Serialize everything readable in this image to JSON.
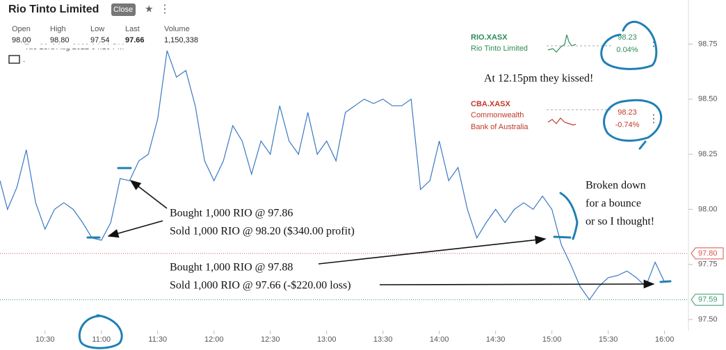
{
  "header": {
    "title": "Rio Tinto Limited",
    "status": "Close",
    "date": "Tue 23rd Aug 2022 04:10 PM",
    "stats": [
      {
        "label": "Open",
        "value": "98.00"
      },
      {
        "label": "High",
        "value": "98.80"
      },
      {
        "label": "Low",
        "value": "97.54"
      },
      {
        "label": "Last",
        "value": "97.66"
      },
      {
        "label": "Volume",
        "value": "1,150,338"
      }
    ]
  },
  "watchlist": [
    {
      "symbol": "RIO.XASX",
      "name_lines": [
        "Rio Tinto Limited"
      ],
      "price": "98.23",
      "change": "0.04%"
    },
    {
      "symbol": "CBA.XASX",
      "name_lines": [
        "Commonwealth",
        "Bank of Australia"
      ],
      "price": "98.23",
      "change": "-0.74%"
    }
  ],
  "annotations": {
    "kissed": "At 12.15pm they kissed!",
    "trade1": [
      "Bought 1,000 RIO @ 97.86",
      "Sold 1,000 RIO @ 98.20 ($340.00 profit)"
    ],
    "trade2": [
      "Bought 1,000 RIO @ 97.88",
      "Sold 1,000 RIO @ 97.66 (-$220.00 loss)"
    ],
    "note": [
      "Broken down",
      "for a bounce",
      "or so I thought!"
    ]
  },
  "chart_data": {
    "type": "line",
    "x": [
      606,
      610,
      615,
      620,
      625,
      630,
      635,
      640,
      645,
      650,
      655,
      660,
      665,
      670,
      675,
      680,
      685,
      690,
      695,
      700,
      705,
      710,
      715,
      720,
      725,
      730,
      735,
      740,
      745,
      750,
      755,
      760,
      765,
      770,
      775,
      780,
      785,
      790,
      795,
      800,
      805,
      810,
      815,
      820,
      825,
      830,
      835,
      840,
      845,
      850,
      855,
      860,
      865,
      870,
      875,
      880,
      885,
      890,
      895,
      900,
      905,
      910,
      915,
      920,
      925,
      930,
      935,
      940,
      945,
      950,
      955,
      960
    ],
    "series": [
      {
        "name": "RIO.XASX",
        "color": "#3b78c3",
        "values": [
          98.13,
          98.0,
          98.1,
          98.27,
          98.03,
          97.91,
          98.0,
          98.03,
          98.0,
          97.94,
          97.87,
          97.86,
          97.94,
          98.14,
          98.13,
          98.22,
          98.25,
          98.41,
          98.72,
          98.6,
          98.63,
          98.47,
          98.22,
          98.13,
          98.22,
          98.38,
          98.31,
          98.16,
          98.31,
          98.25,
          98.47,
          98.31,
          98.25,
          98.44,
          98.25,
          98.31,
          98.22,
          98.44,
          98.47,
          98.5,
          98.48,
          98.5,
          98.47,
          98.47,
          98.5,
          98.09,
          98.13,
          98.31,
          98.13,
          98.19,
          98.0,
          97.87,
          97.94,
          98.0,
          97.94,
          98.0,
          98.03,
          98.0,
          98.06,
          98.0,
          97.84,
          97.75,
          97.65,
          97.59,
          97.65,
          97.69,
          97.7,
          97.72,
          97.69,
          97.65,
          97.76,
          97.67
        ]
      }
    ],
    "xlim": [
      606,
      972
    ],
    "xticks": [
      {
        "value": 630,
        "label": "10:30"
      },
      {
        "value": 660,
        "label": "11:00"
      },
      {
        "value": 690,
        "label": "11:30"
      },
      {
        "value": 720,
        "label": "12:00"
      },
      {
        "value": 750,
        "label": "12:30"
      },
      {
        "value": 780,
        "label": "13:00"
      },
      {
        "value": 810,
        "label": "13:30"
      },
      {
        "value": 840,
        "label": "14:00"
      },
      {
        "value": 870,
        "label": "14:30"
      },
      {
        "value": 900,
        "label": "15:00"
      },
      {
        "value": 930,
        "label": "15:30"
      },
      {
        "value": 960,
        "label": "16:00"
      }
    ],
    "ylim": [
      97.45,
      98.95
    ],
    "yticks": [
      {
        "value": 97.5,
        "label": "97.50"
      },
      97.75,
      {
        "value": 98,
        "label": "98.00"
      },
      98.25,
      {
        "value": 98.5,
        "label": "98.50"
      },
      98.75
    ],
    "ref_lines": [
      {
        "value": 97.8,
        "label": "97.80",
        "color": "#d9534f"
      },
      {
        "value": 97.59,
        "label": "97.59",
        "color": "#3a9a6a"
      }
    ]
  }
}
